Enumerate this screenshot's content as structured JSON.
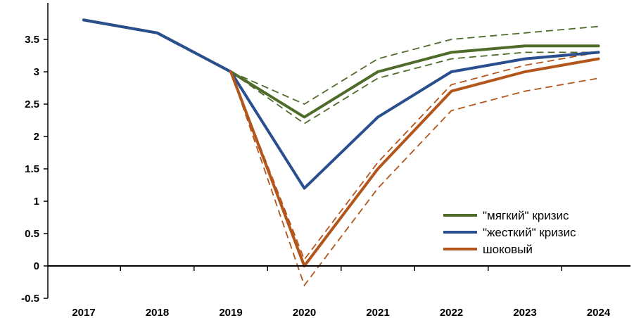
{
  "chart_data": {
    "type": "line",
    "title": "",
    "xlabel": "",
    "ylabel": "",
    "categories": [
      "2017",
      "2018",
      "2019",
      "2020",
      "2021",
      "2022",
      "2023",
      "2024"
    ],
    "ylim": [
      -0.5,
      4.0
    ],
    "yticks": [
      -0.5,
      0,
      0.5,
      1,
      1.5,
      2,
      2.5,
      3,
      3.5
    ],
    "ytick_labels": [
      "-0.5",
      "0",
      "0.5",
      "1",
      "1.5",
      "2",
      "2.5",
      "3",
      "3.5"
    ],
    "grid": false,
    "legend_position": "bottom-right",
    "series": [
      {
        "name": "\"мягкий\" кризис",
        "color": "#4e6b2a",
        "style": "solid",
        "values": [
          3.8,
          3.6,
          3.0,
          2.3,
          3.0,
          3.3,
          3.4,
          3.4
        ]
      },
      {
        "name": "\"жесткий\" кризис",
        "color": "#2a4f8e",
        "style": "solid",
        "values": [
          3.8,
          3.6,
          3.0,
          1.2,
          2.3,
          3.0,
          3.2,
          3.3
        ]
      },
      {
        "name": "шоковый",
        "color": "#b2561c",
        "style": "solid",
        "values": [
          null,
          null,
          3.0,
          0.0,
          1.5,
          2.7,
          3.0,
          3.2
        ]
      }
    ],
    "bands": [
      {
        "color": "#4e6b2a",
        "values": [
          null,
          null,
          3.0,
          2.5,
          3.2,
          3.5,
          3.6,
          3.7
        ]
      },
      {
        "color": "#4e6b2a",
        "values": [
          null,
          null,
          3.0,
          2.2,
          2.9,
          3.2,
          3.3,
          3.3
        ]
      },
      {
        "color": "#b2561c",
        "values": [
          null,
          null,
          3.0,
          0.1,
          1.6,
          2.8,
          3.1,
          3.3
        ]
      },
      {
        "color": "#b2561c",
        "values": [
          null,
          null,
          3.0,
          -0.3,
          1.2,
          2.4,
          2.7,
          2.9
        ]
      }
    ]
  }
}
